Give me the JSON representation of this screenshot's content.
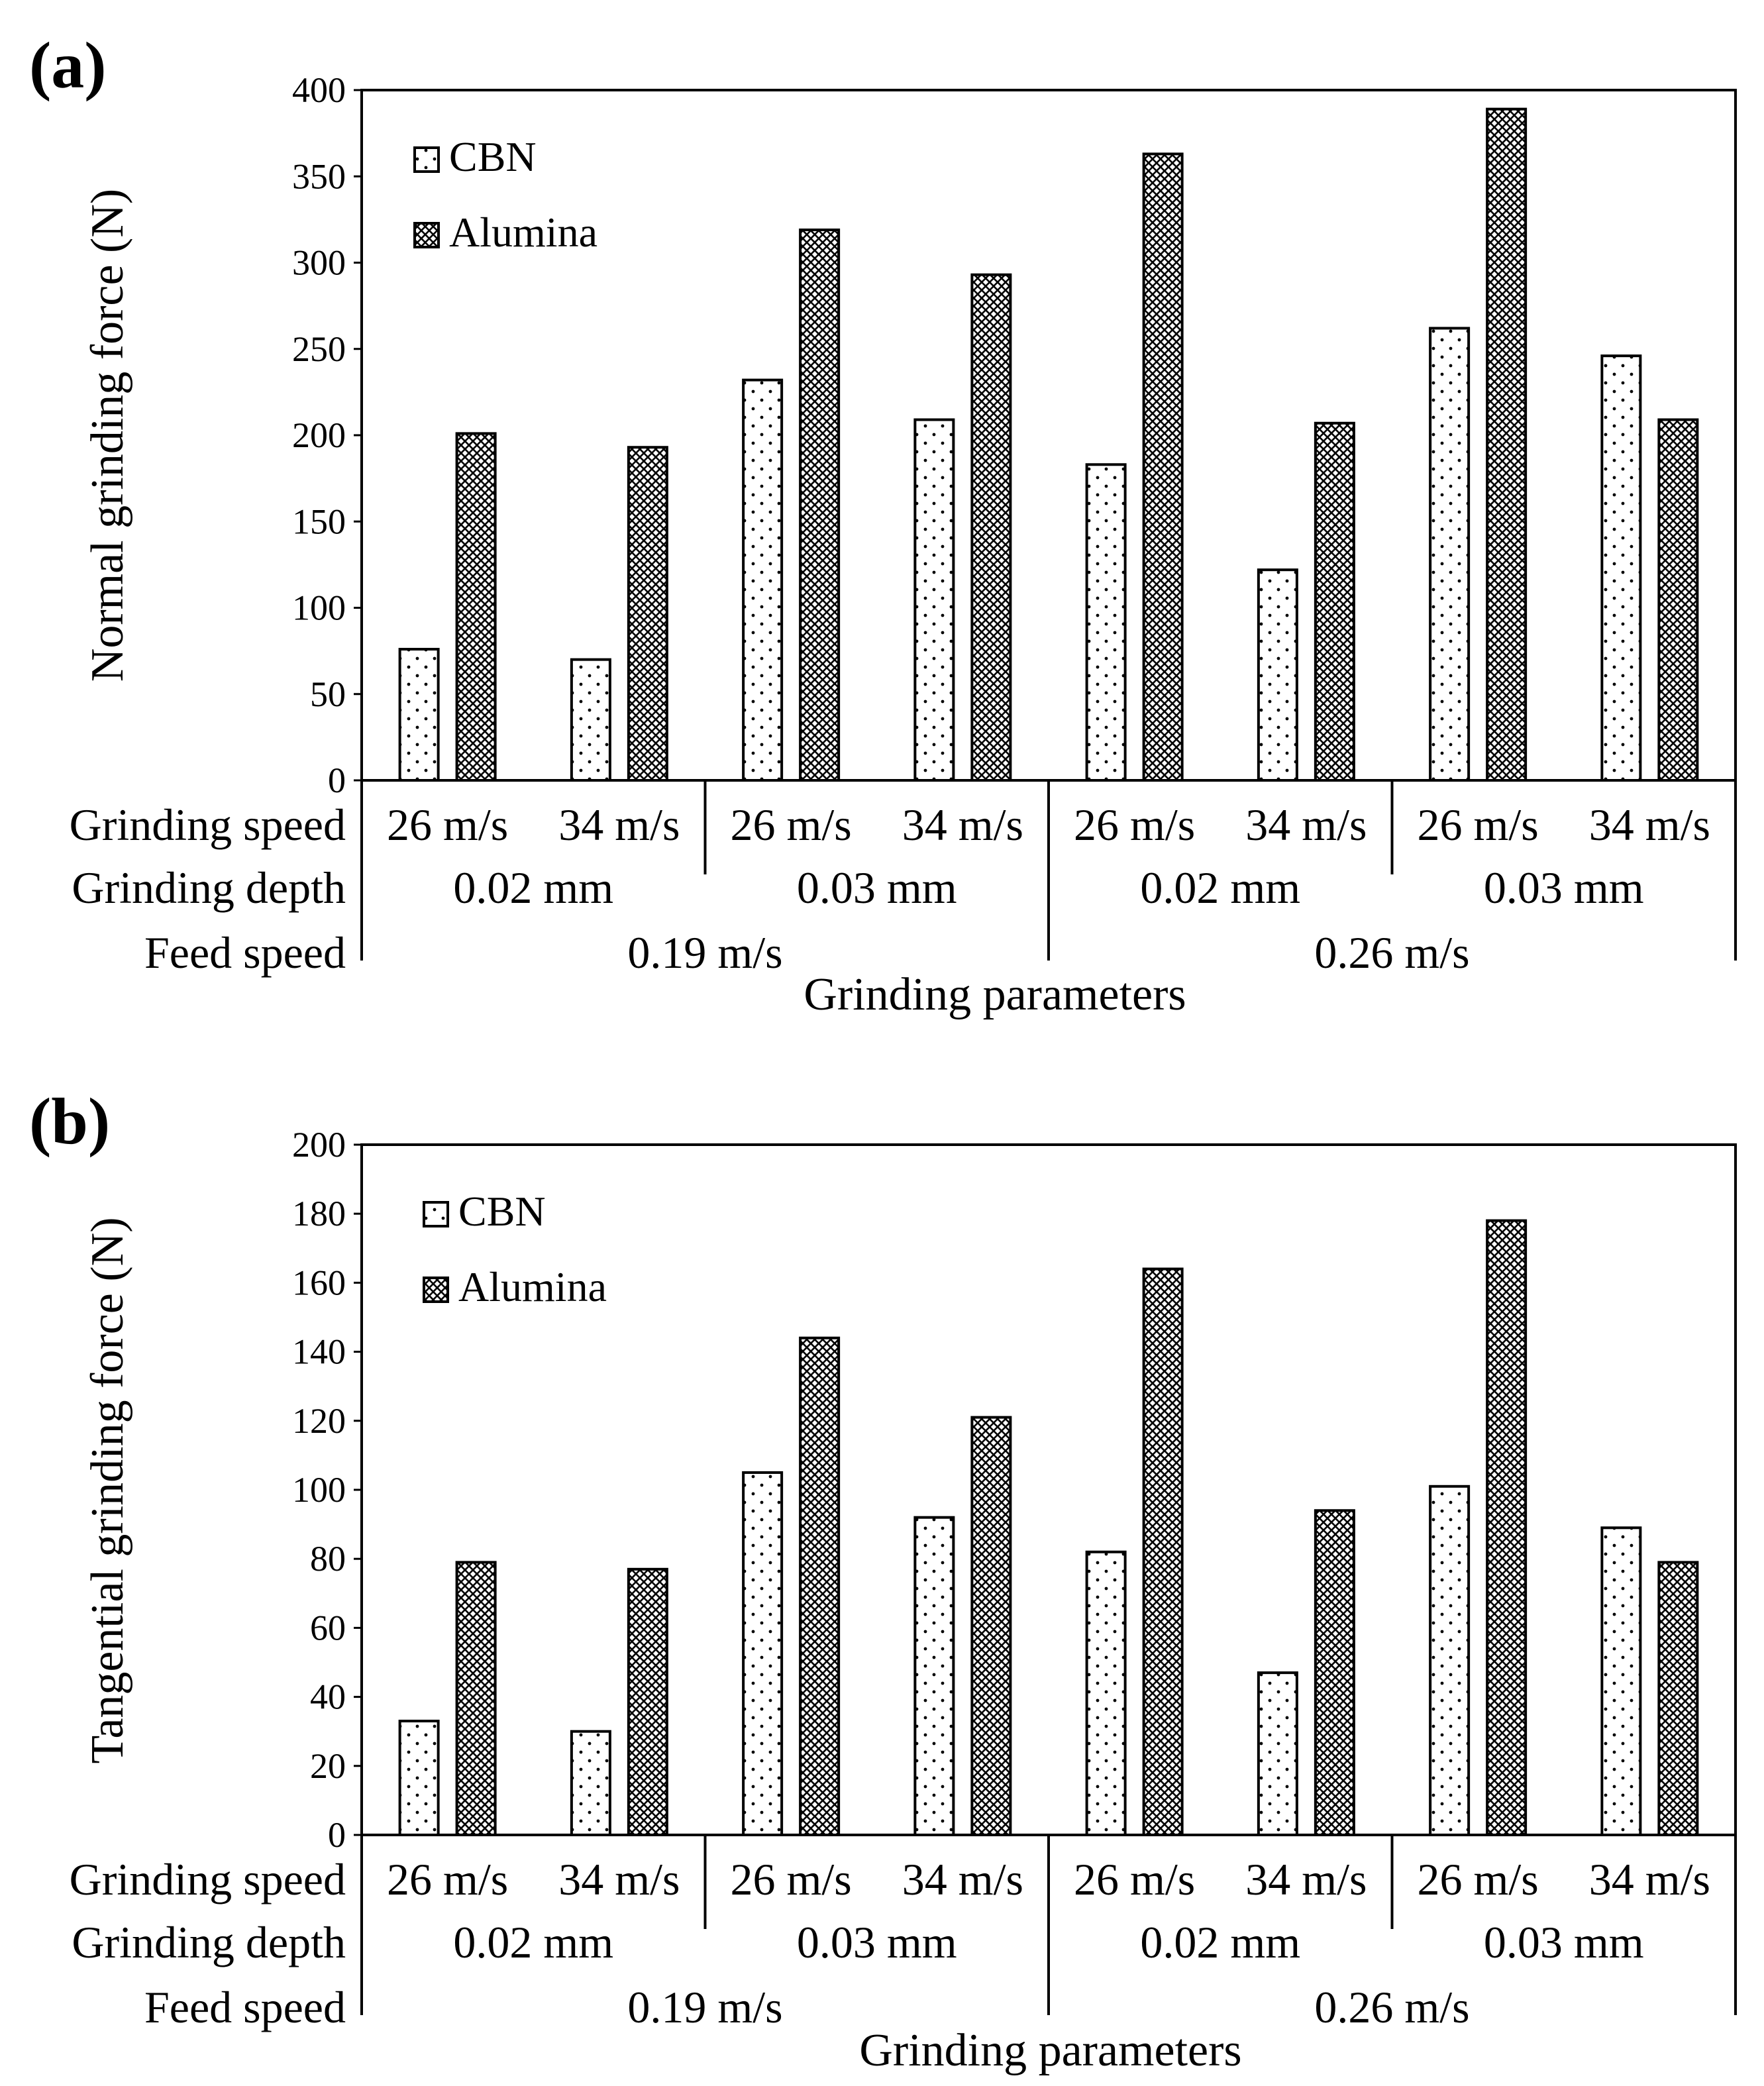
{
  "chart_data": [
    {
      "type": "bar",
      "panel_label": "(a)",
      "ylabel": "Normal grinding force (N)",
      "xlabel": "Grinding parameters",
      "ylim": [
        0,
        400
      ],
      "yticks": [
        "0",
        "50",
        "100",
        "150",
        "200",
        "250",
        "300",
        "350",
        "400"
      ],
      "grid": false,
      "legend_position": "top-left",
      "row_labels": [
        "Grinding speed",
        "Grinding depth",
        "Feed speed"
      ],
      "categories": [
        "26 m/s",
        "34 m/s",
        "26 m/s",
        "34 m/s",
        "26 m/s",
        "34 m/s",
        "26 m/s",
        "34 m/s"
      ],
      "grinding_depth_groups": [
        "0.02 mm",
        "0.03 mm",
        "0.02 mm",
        "0.03 mm"
      ],
      "feed_speed_groups": [
        "0.19 m/s",
        "0.26 m/s"
      ],
      "series": [
        {
          "name": "CBN",
          "values": [
            76,
            70,
            232,
            209,
            183,
            122,
            262,
            246
          ]
        },
        {
          "name": "Alumina",
          "values": [
            201,
            193,
            319,
            293,
            363,
            207,
            389,
            209
          ]
        }
      ]
    },
    {
      "type": "bar",
      "panel_label": "(b)",
      "ylabel": "Tangential grinding force (N)",
      "xlabel": "Grinding parameters",
      "ylim": [
        0,
        200
      ],
      "yticks": [
        "0",
        "20",
        "40",
        "60",
        "80",
        "100",
        "120",
        "140",
        "160",
        "180",
        "200"
      ],
      "grid": false,
      "legend_position": "top-left",
      "row_labels": [
        "Grinding speed",
        "Grinding depth",
        "Feed speed"
      ],
      "categories": [
        "26 m/s",
        "34 m/s",
        "26 m/s",
        "34 m/s",
        "26 m/s",
        "34 m/s",
        "26 m/s",
        "34 m/s"
      ],
      "grinding_depth_groups": [
        "0.02 mm",
        "0.03 mm",
        "0.02 mm",
        "0.03 mm"
      ],
      "feed_speed_groups": [
        "0.19 m/s",
        "0.26 m/s"
      ],
      "series": [
        {
          "name": "CBN",
          "values": [
            33,
            30,
            105,
            92,
            82,
            47,
            101,
            89
          ]
        },
        {
          "name": "Alumina",
          "values": [
            79,
            77,
            144,
            121,
            164,
            94,
            178,
            79
          ]
        }
      ]
    }
  ]
}
